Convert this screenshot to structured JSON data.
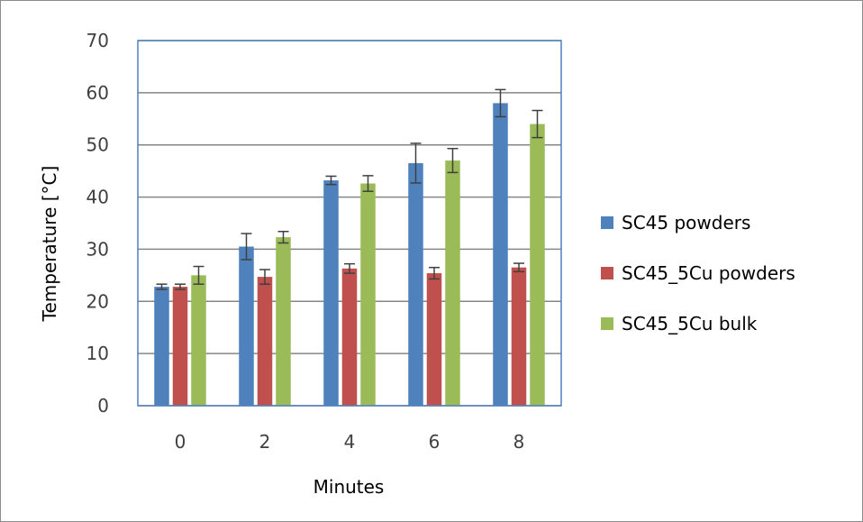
{
  "chart_data": {
    "type": "bar",
    "title": "",
    "xlabel": "Minutes",
    "ylabel": "Temperature [°C]",
    "categories": [
      "0",
      "2",
      "4",
      "6",
      "8"
    ],
    "ylim": [
      0,
      70
    ],
    "yticks": [
      "0",
      "10",
      "20",
      "30",
      "40",
      "50",
      "60",
      "70"
    ],
    "grid": true,
    "legend_position": "right",
    "series": [
      {
        "name": "SC45 powders",
        "color": "#4f81bd",
        "values": [
          22.8,
          30.5,
          43.2,
          46.5,
          58.0
        ],
        "errors": [
          0.5,
          2.5,
          0.8,
          3.8,
          2.6
        ]
      },
      {
        "name": "SC45_5Cu powders",
        "color": "#c0504d",
        "values": [
          22.8,
          24.7,
          26.3,
          25.4,
          26.5
        ],
        "errors": [
          0.5,
          1.4,
          0.9,
          1.1,
          0.8
        ]
      },
      {
        "name": "SC45_5Cu bulk",
        "color": "#9bbb59",
        "values": [
          25.0,
          32.3,
          42.6,
          47.0,
          54.0
        ],
        "errors": [
          1.7,
          1.1,
          1.5,
          2.3,
          2.6
        ]
      }
    ]
  }
}
